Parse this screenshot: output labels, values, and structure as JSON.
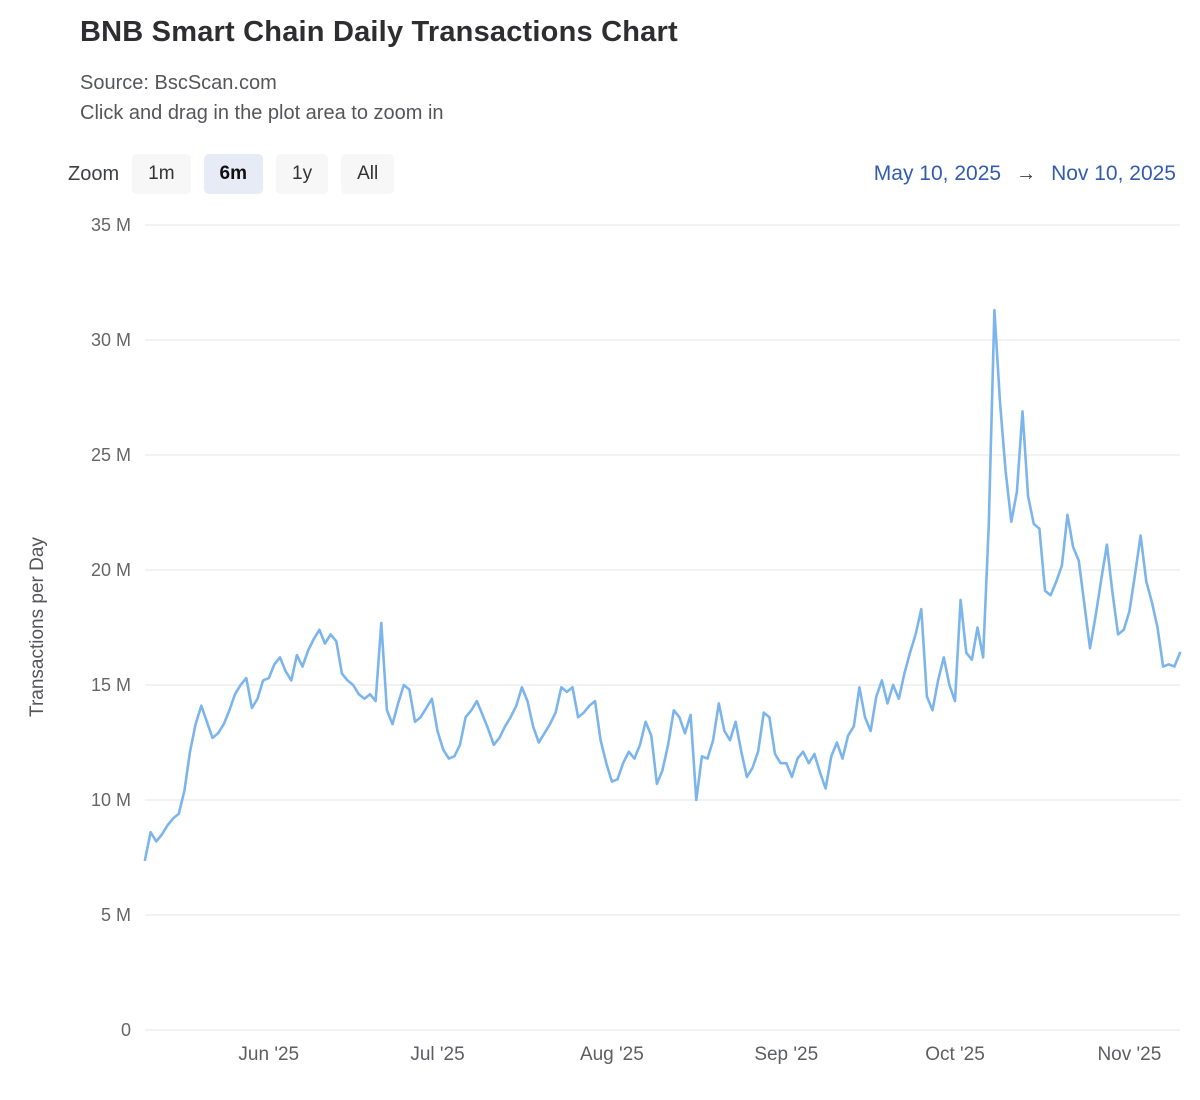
{
  "header": {
    "title": "BNB Smart Chain Daily Transactions Chart",
    "source": "Source: BscScan.com",
    "hint": "Click and drag in the plot area to zoom in"
  },
  "controls": {
    "zoom_label": "Zoom",
    "buttons": [
      {
        "label": "1m",
        "selected": false
      },
      {
        "label": "6m",
        "selected": true
      },
      {
        "label": "1y",
        "selected": false
      },
      {
        "label": "All",
        "selected": false
      }
    ],
    "range": {
      "from": "May 10, 2025",
      "arrow": "→",
      "to": "Nov 10, 2025"
    }
  },
  "chart_data": {
    "type": "line",
    "title": "BNB Smart Chain Daily Transactions Chart",
    "xlabel": "",
    "ylabel": "Transactions per Day",
    "value_unit": "millions of transactions per day",
    "line_color": "#7cb5ec",
    "grid_color": "#e6e6e6",
    "grid": "horizontal",
    "legend": false,
    "ylim": [
      0,
      35
    ],
    "yticks": [
      {
        "value": 0,
        "label": "0"
      },
      {
        "value": 5,
        "label": "5 M"
      },
      {
        "value": 10,
        "label": "10 M"
      },
      {
        "value": 15,
        "label": "15 M"
      },
      {
        "value": 20,
        "label": "20 M"
      },
      {
        "value": 25,
        "label": "25 M"
      },
      {
        "value": 30,
        "label": "30 M"
      },
      {
        "value": 35,
        "label": "35 M"
      }
    ],
    "x_start_date": "2025-05-10",
    "x_end_date": "2025-11-10",
    "x_unit": "day",
    "xticks": [
      {
        "date": "2025-06-01",
        "label": "Jun '25"
      },
      {
        "date": "2025-07-01",
        "label": "Jul '25"
      },
      {
        "date": "2025-08-01",
        "label": "Aug '25"
      },
      {
        "date": "2025-09-01",
        "label": "Sep '25"
      },
      {
        "date": "2025-10-01",
        "label": "Oct '25"
      },
      {
        "date": "2025-11-01",
        "label": "Nov '25"
      }
    ],
    "series": [
      {
        "name": "Transactions per Day",
        "values": [
          7.4,
          8.6,
          8.2,
          8.5,
          8.9,
          9.2,
          9.4,
          10.4,
          12.1,
          13.3,
          14.1,
          13.4,
          12.7,
          12.9,
          13.3,
          13.9,
          14.6,
          15.0,
          15.3,
          14.0,
          14.4,
          15.2,
          15.3,
          15.9,
          16.2,
          15.6,
          15.2,
          16.3,
          15.8,
          16.5,
          17.0,
          17.4,
          16.8,
          17.2,
          16.9,
          15.5,
          15.2,
          15.0,
          14.6,
          14.4,
          14.6,
          14.3,
          17.7,
          13.9,
          13.3,
          14.2,
          15.0,
          14.8,
          13.4,
          13.6,
          14.0,
          14.4,
          13.0,
          12.2,
          11.8,
          11.9,
          12.4,
          13.6,
          13.9,
          14.3,
          13.7,
          13.1,
          12.4,
          12.7,
          13.2,
          13.6,
          14.1,
          14.9,
          14.3,
          13.2,
          12.5,
          12.9,
          13.3,
          13.8,
          14.9,
          14.7,
          14.9,
          13.6,
          13.8,
          14.1,
          14.3,
          12.6,
          11.6,
          10.8,
          10.9,
          11.6,
          12.1,
          11.8,
          12.4,
          13.4,
          12.8,
          10.7,
          11.3,
          12.4,
          13.9,
          13.6,
          12.9,
          13.7,
          10.0,
          11.9,
          11.8,
          12.6,
          14.2,
          13.0,
          12.6,
          13.4,
          12.1,
          11.0,
          11.4,
          12.1,
          13.8,
          13.6,
          12.0,
          11.6,
          11.6,
          11.0,
          11.8,
          12.1,
          11.6,
          12.0,
          11.2,
          10.5,
          11.9,
          12.5,
          11.8,
          12.8,
          13.2,
          14.9,
          13.6,
          13.0,
          14.5,
          15.2,
          14.2,
          15.0,
          14.4,
          15.5,
          16.4,
          17.2,
          18.3,
          14.5,
          13.9,
          15.2,
          16.2,
          15.0,
          14.3,
          18.7,
          16.4,
          16.1,
          17.5,
          16.2,
          22.0,
          31.3,
          27.3,
          24.3,
          22.1,
          23.4,
          26.9,
          23.2,
          22.0,
          21.8,
          19.1,
          18.9,
          19.5,
          20.2,
          22.4,
          21.0,
          20.4,
          18.5,
          16.6,
          18.0,
          19.6,
          21.1,
          19.0,
          17.2,
          17.4,
          18.2,
          19.8,
          21.5,
          19.5,
          18.6,
          17.5,
          15.8,
          15.9,
          15.8,
          16.4
        ]
      }
    ]
  }
}
